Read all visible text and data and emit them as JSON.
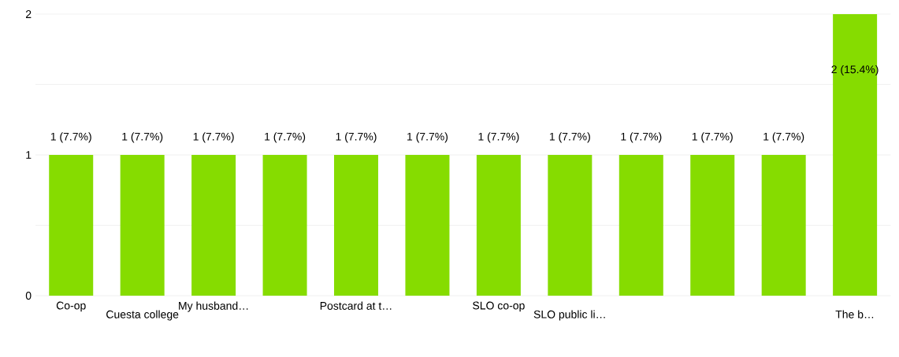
{
  "chart_data": {
    "type": "bar",
    "categories": [
      "Co-op",
      "Cuesta college",
      "My husband…",
      null,
      "Postcard at t…",
      null,
      "SLO co-op",
      "SLO public li…",
      null,
      null,
      null,
      "The b…"
    ],
    "values": [
      1,
      1,
      1,
      1,
      1,
      1,
      1,
      1,
      1,
      1,
      1,
      2
    ],
    "value_labels": [
      "1 (7.7%)",
      "1 (7.7%)",
      "1 (7.7%)",
      "1 (7.7%)",
      "1 (7.7%)",
      "1 (7.7%)",
      "1 (7.7%)",
      "1 (7.7%)",
      "1 (7.7%)",
      "1 (7.7%)",
      "1 (7.7%)",
      "2 (15.4%)"
    ],
    "color": "#86dc00",
    "ylim": [
      0,
      2
    ],
    "yticks": [
      0,
      {
        "value": 0.5,
        "label": null
      },
      1,
      {
        "value": 1.5,
        "label": null
      },
      2
    ],
    "grid": "y"
  }
}
